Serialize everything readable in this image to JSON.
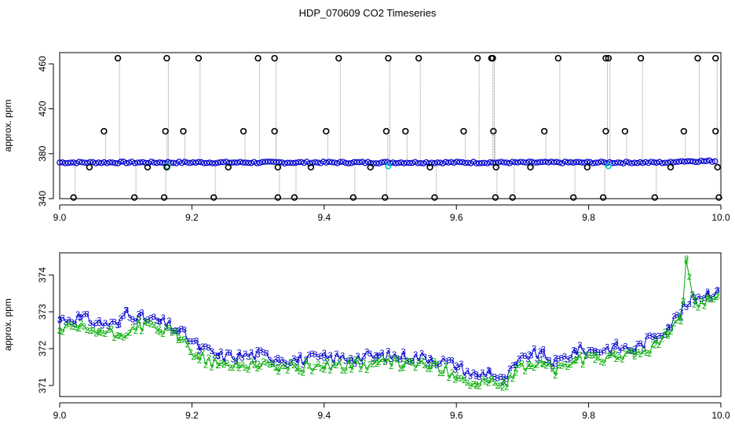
{
  "title": "HDP_070609  CO2 Timeseries",
  "colors": {
    "blue": "#0000cc",
    "green": "#00aa00",
    "cyan": "#00c8c8",
    "grey": "#909090",
    "black": "#000000"
  },
  "chart_data": [
    {
      "type": "scatter",
      "ylabel": "approx. ppm",
      "xlim": [
        9.0,
        10.0
      ],
      "ylim": [
        340,
        470
      ],
      "xticks": [
        9.0,
        9.2,
        9.4,
        9.6,
        9.8,
        10.0
      ],
      "yticks": [
        340,
        380,
        420,
        460
      ],
      "xtick_labels": [
        "9.0",
        "9.2",
        "9.4",
        "9.6",
        "9.8",
        "10.0"
      ],
      "ytick_labels": [
        "340",
        "380",
        "420",
        "460"
      ],
      "baseline_series": {
        "name": "",
        "color": "blue",
        "y": 372.2
      },
      "outliers": {
        "high_465": [
          9.088,
          9.162,
          9.21,
          9.3,
          9.325,
          9.422,
          9.497,
          9.543,
          9.632,
          9.653,
          9.655,
          9.754,
          9.826,
          9.83,
          9.879,
          9.965,
          9.992
        ],
        "mid_400": [
          9.067,
          9.16,
          9.187,
          9.278,
          9.325,
          9.403,
          9.494,
          9.523,
          9.611,
          9.656,
          9.733,
          9.826,
          9.855,
          9.944,
          9.992
        ],
        "low_368": [
          9.045,
          9.133,
          9.162,
          9.255,
          9.33,
          9.38,
          9.47,
          9.56,
          9.66,
          9.712,
          9.798,
          9.924,
          9.995
        ],
        "bottom_341": [
          9.021,
          9.113,
          9.158,
          9.233,
          9.33,
          9.355,
          9.444,
          9.492,
          9.567,
          9.659,
          9.685,
          9.777,
          9.822,
          9.9,
          9.997
        ]
      }
    },
    {
      "type": "scatter",
      "ylabel": "approx. ppm",
      "xlim": [
        9.0,
        10.0
      ],
      "ylim": [
        370.7,
        374.6
      ],
      "xticks": [
        9.0,
        9.2,
        9.4,
        9.6,
        9.8,
        10.0
      ],
      "yticks": [
        371,
        372,
        373,
        374
      ],
      "xtick_labels": [
        "9.0",
        "9.2",
        "9.4",
        "9.6",
        "9.8",
        "10.0"
      ],
      "ytick_labels": [
        "371",
        "372",
        "373",
        "374"
      ],
      "series": [
        {
          "name": "",
          "marker": "3",
          "color": "blue",
          "x": [
            9.0,
            9.03,
            9.06,
            9.09,
            9.1,
            9.12,
            9.15,
            9.18,
            9.21,
            9.24,
            9.27,
            9.3,
            9.33,
            9.36,
            9.4,
            9.44,
            9.48,
            9.52,
            9.56,
            9.6,
            9.63,
            9.65,
            9.67,
            9.69,
            9.71,
            9.73,
            9.75,
            9.78,
            9.81,
            9.84,
            9.87,
            9.9,
            9.92,
            9.94,
            9.96,
            9.98,
            9.995
          ],
          "y": [
            372.8,
            372.85,
            372.7,
            372.65,
            373.05,
            372.85,
            372.75,
            372.5,
            372.05,
            371.8,
            371.8,
            371.85,
            371.75,
            371.7,
            371.75,
            371.75,
            371.8,
            371.8,
            371.75,
            371.55,
            371.25,
            371.4,
            371.1,
            371.55,
            371.85,
            371.85,
            371.6,
            371.95,
            371.95,
            372.05,
            372.0,
            372.35,
            372.6,
            373.0,
            373.4,
            373.5,
            373.6
          ]
        },
        {
          "name": "",
          "marker": "2",
          "color": "green",
          "x": [
            9.0,
            9.03,
            9.06,
            9.09,
            9.12,
            9.15,
            9.18,
            9.21,
            9.24,
            9.27,
            9.3,
            9.33,
            9.36,
            9.4,
            9.44,
            9.48,
            9.52,
            9.56,
            9.6,
            9.63,
            9.65,
            9.67,
            9.69,
            9.71,
            9.73,
            9.75,
            9.78,
            9.81,
            9.84,
            9.87,
            9.9,
            9.92,
            9.94,
            9.948,
            9.96,
            9.98,
            9.995
          ],
          "y": [
            372.5,
            372.55,
            372.45,
            372.35,
            372.65,
            372.55,
            372.3,
            371.8,
            371.55,
            371.55,
            371.6,
            371.5,
            371.5,
            371.55,
            371.55,
            371.6,
            371.6,
            371.55,
            371.3,
            371.0,
            371.15,
            370.95,
            371.35,
            371.6,
            371.6,
            371.4,
            371.7,
            371.7,
            371.85,
            371.8,
            372.1,
            372.4,
            372.75,
            374.45,
            373.2,
            373.35,
            373.45
          ]
        }
      ]
    }
  ]
}
